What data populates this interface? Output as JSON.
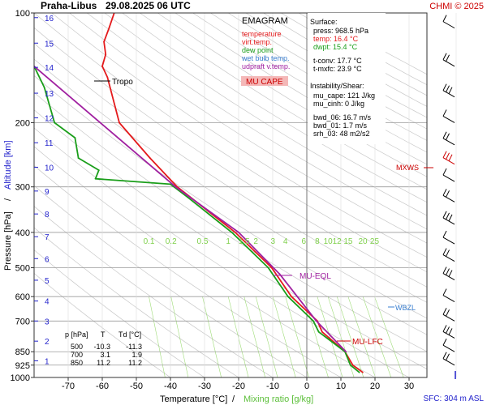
{
  "header": {
    "station": "Praha-Libus",
    "datetime": "29.08.2025 06 UTC",
    "credit": "CHMI © 2025"
  },
  "legend": {
    "title": "EMAGRAM",
    "items": [
      {
        "label": "temperature",
        "color": "#e41a1c"
      },
      {
        "label": "virt.temp.",
        "color": "#e41a1c"
      },
      {
        "label": "dew point",
        "color": "#1a9e1a"
      },
      {
        "label": "wet bulb temp.",
        "color": "#3a7fd0"
      },
      {
        "label": "udpraft v.temp.",
        "color": "#a020a0"
      }
    ],
    "cape_label": "MU CAPE"
  },
  "info": {
    "surface_title": "Surface:",
    "surface_lines": [
      "press: 968.5 hPa",
      "temp: 16.4 °C",
      "dwpt: 15.4 °C"
    ],
    "conv_lines": [
      "t-conv: 17.7 °C",
      "t-mxfc: 23.9 °C"
    ],
    "instab_title": "Instability/Shear:",
    "instab_lines": [
      "mu_cape: 121 J/kg",
      "mu_cinh: 0 J/kg"
    ],
    "shear_lines": [
      "bwd_06: 16.7 m/s",
      "bwd_01: 1.7 m/s",
      "srh_03: 48 m2/s2"
    ]
  },
  "table": {
    "headers": [
      "p [hPa]",
      "T",
      "Td [°C]"
    ],
    "rows": [
      [
        "500",
        "-10.3",
        "-11.3"
      ],
      [
        "700",
        "3.1",
        "1.9"
      ],
      [
        "850",
        "11.2",
        "11.2"
      ]
    ]
  },
  "annotations": {
    "tropo": "Tropo",
    "mu_eql": "MU-EQL",
    "mu_lfc": "MU-LFC",
    "wbzl": "WBZL",
    "mxws": "MXWS",
    "sfc": "SFC: 304 m ASL"
  },
  "axes": {
    "ylabel_pressure": "Pressure [hPa]",
    "ylabel_sep": "/",
    "ylabel_altitude": "Altitude [km]",
    "xlabel_temp": "Temperature [°C]",
    "xlabel_sep": "/",
    "xlabel_mix": "Mixing ratio [g/kg]"
  },
  "colors": {
    "temperature": "#e41a1c",
    "dewpoint": "#1a9e1a",
    "wetbulb": "#3a7fd0",
    "parcel": "#a020a0",
    "altitude": "#2222cc",
    "mixing": "#7fd04b",
    "isotherm_zero": "#777777",
    "grid": "#9a9a9a"
  },
  "chart_data": {
    "type": "line",
    "x_axis": {
      "label": "Temperature [°C]",
      "range": [
        -80,
        35
      ],
      "ticks": [
        -70,
        -60,
        -50,
        -40,
        -30,
        -20,
        -10,
        0,
        10,
        20,
        30
      ]
    },
    "y_axis": {
      "label": "Pressure [hPa]",
      "scale": "log",
      "range": [
        1000,
        100
      ],
      "ticks": [
        100,
        200,
        300,
        400,
        500,
        600,
        700,
        850,
        925,
        1000
      ]
    },
    "altitude_ticks_km": [
      1,
      2,
      3,
      4,
      5,
      6,
      7,
      8,
      9,
      10,
      11,
      12,
      13,
      14,
      15,
      16
    ],
    "mixing_ratio_labels": [
      "0.1",
      "0.2",
      "0.5",
      "1",
      "1.5",
      "2",
      "3",
      "4",
      "6",
      "8",
      "10",
      "12",
      "15",
      "20",
      "25"
    ],
    "series": [
      {
        "name": "temperature",
        "points": [
          [
            968.5,
            16.4
          ],
          [
            925,
            13.5
          ],
          [
            850,
            11.2
          ],
          [
            800,
            8.0
          ],
          [
            750,
            4.5
          ],
          [
            700,
            3.1
          ],
          [
            600,
            -4.5
          ],
          [
            500,
            -10.3
          ],
          [
            400,
            -21.0
          ],
          [
            300,
            -38.0
          ],
          [
            250,
            -46.0
          ],
          [
            200,
            -55.0
          ],
          [
            150,
            -58.5
          ],
          [
            140,
            -60.0
          ],
          [
            130,
            -59.0
          ],
          [
            120,
            -59.5
          ],
          [
            110,
            -58.0
          ],
          [
            100,
            -56.5
          ]
        ]
      },
      {
        "name": "dew point",
        "points": [
          [
            968.5,
            15.4
          ],
          [
            925,
            12.8
          ],
          [
            850,
            11.2
          ],
          [
            800,
            7.5
          ],
          [
            750,
            3.5
          ],
          [
            700,
            1.9
          ],
          [
            600,
            -5.5
          ],
          [
            500,
            -11.3
          ],
          [
            400,
            -22.0
          ],
          [
            320,
            -35.0
          ],
          [
            295,
            -40.0
          ],
          [
            285,
            -62.0
          ],
          [
            270,
            -61.0
          ],
          [
            250,
            -67.0
          ],
          [
            220,
            -68.0
          ],
          [
            200,
            -74.0
          ],
          [
            160,
            -77.0
          ],
          [
            140,
            -80.0
          ]
        ]
      },
      {
        "name": "udpraft v.temp.",
        "points": [
          [
            850,
            11.5
          ],
          [
            700,
            2.8
          ],
          [
            520,
            -8.0
          ],
          [
            400,
            -20.0
          ],
          [
            300,
            -38.5
          ],
          [
            140,
            -80.0
          ]
        ]
      }
    ],
    "levels": [
      {
        "name": "Tropo",
        "pressure": 140
      },
      {
        "name": "MU-EQL",
        "pressure": 520
      },
      {
        "name": "MU-LFC",
        "pressure": 800
      },
      {
        "name": "WBZL",
        "pressure": 650
      },
      {
        "name": "MXWS",
        "pressure": 270
      }
    ]
  }
}
